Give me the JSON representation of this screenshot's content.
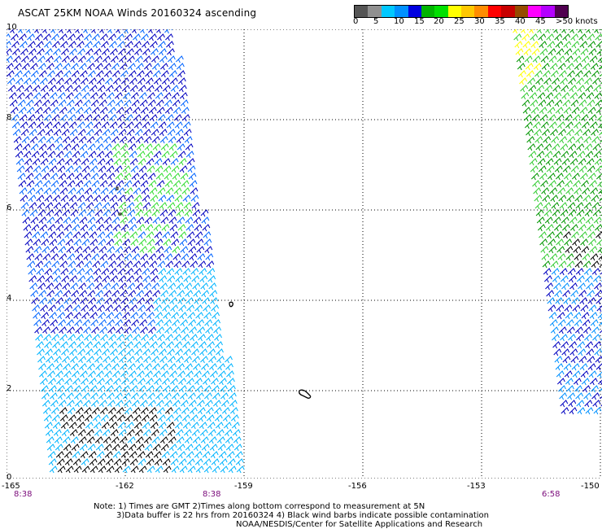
{
  "title": "ASCAT 25KM NOAA Winds 20160324 ascending",
  "colorbar": {
    "colors": [
      "#555555",
      "#909090",
      "#00c8ff",
      "#0090ff",
      "#0000e0",
      "#00b400",
      "#00e000",
      "#ffff00",
      "#ffc800",
      "#ff8c00",
      "#ff0000",
      "#c80000",
      "#964b00",
      "#ff00ff",
      "#b400ff",
      "#500050"
    ],
    "labels": [
      "0",
      "5",
      "10",
      "15",
      "20",
      "25",
      "30",
      "35",
      "40",
      "45",
      ">50 knots"
    ]
  },
  "axes": {
    "y_ticks": [
      "10",
      "8",
      "6",
      "4",
      "2",
      "0"
    ],
    "x_ticks": [
      "-165",
      "-162",
      "-159",
      "-156",
      "-153",
      "-150"
    ]
  },
  "times": [
    "8:38",
    "8:38",
    "6:58"
  ],
  "notes": {
    "line1": "Note: 1) Times are GMT 2)Times along bottom correspond to measurement at 5N",
    "line2": "3)Data buffer is 22 hrs from 20160324 4) Black wind barbs indicate possible contamination",
    "credit": "NOAA/NESDIS/Center for Satellite Applications and Research"
  },
  "swaths": [
    {
      "name": "left-swath",
      "colors": [
        "#0000c0",
        "#0064ff",
        "#00b4ff",
        "#33dd33",
        "#000000"
      ]
    },
    {
      "name": "right-swath",
      "colors": [
        "#009600",
        "#33cc33",
        "#ffff00",
        "#0000c0",
        "#0090ff",
        "#000000"
      ]
    }
  ]
}
